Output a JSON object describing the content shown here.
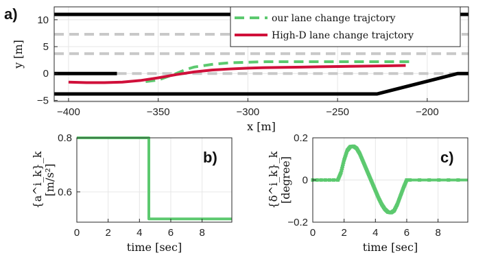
{
  "chart_data": [
    {
      "panel": "a)",
      "type": "line",
      "xlabel": "x [m]",
      "ylabel": "y [m]",
      "xlim": [
        -408,
        -177
      ],
      "ylim": [
        -5.2,
        12.4
      ],
      "xticks": [
        -400,
        -350,
        -300,
        -250,
        -200
      ],
      "yticks": [
        -5,
        0,
        5,
        10
      ],
      "legend_position": "top-right",
      "series": [
        {
          "name": "our lane change trajctory",
          "color": "#5cc96f",
          "style": "dashed",
          "x": [
            -357,
            -350,
            -345,
            -340,
            -335,
            -330,
            -320,
            -310,
            -300,
            -290,
            -280,
            -270,
            -260,
            -250,
            -240,
            -230,
            -220,
            -209
          ],
          "y": [
            -1.5,
            -1.2,
            -0.6,
            0.0,
            0.7,
            1.2,
            1.7,
            2.0,
            2.1,
            2.2,
            2.2,
            2.2,
            2.2,
            2.2,
            2.2,
            2.2,
            2.2,
            2.2
          ]
        },
        {
          "name": "High-D lane change trajctory",
          "color": "#d0103a",
          "style": "solid",
          "x": [
            -400,
            -390,
            -380,
            -370,
            -360,
            -350,
            -340,
            -330,
            -320,
            -310,
            -300,
            -290,
            -280,
            -270,
            -260,
            -250,
            -240,
            -230,
            -220,
            -212
          ],
          "y": [
            -1.6,
            -1.7,
            -1.7,
            -1.6,
            -1.3,
            -0.8,
            -0.2,
            0.3,
            0.65,
            0.85,
            1.0,
            1.1,
            1.15,
            1.2,
            1.25,
            1.3,
            1.35,
            1.4,
            1.45,
            1.5
          ]
        }
      ],
      "road_boundaries": [
        {
          "x": [
            -408,
            -177
          ],
          "y": [
            11,
            11
          ]
        },
        {
          "x": [
            -408,
            -373
          ],
          "y": [
            0,
            0
          ]
        },
        {
          "x": [
            -408,
            -228,
            -183,
            -177
          ],
          "y": [
            -3.8,
            -3.8,
            0,
            0
          ]
        }
      ],
      "lane_markings": [
        {
          "x": [
            -408,
            -177
          ],
          "y": [
            7.3,
            7.3
          ]
        },
        {
          "x": [
            -408,
            -177
          ],
          "y": [
            3.7,
            3.7
          ]
        },
        {
          "x": [
            -373,
            -177
          ],
          "y": [
            0,
            0
          ]
        }
      ]
    },
    {
      "panel": "b)",
      "type": "line",
      "xlabel": "time [sec]",
      "ylabel_top": "{a^i_k}_k",
      "ylabel_bottom": "[m/s²]",
      "xlim": [
        0,
        9.9
      ],
      "ylim": [
        0.488,
        0.8
      ],
      "xticks": [
        0,
        2,
        4,
        6,
        8
      ],
      "yticks": [
        0.6,
        0.8
      ],
      "series": [
        {
          "color": "#5cc96f",
          "x": [
            0,
            4.6,
            4.6,
            9.9
          ],
          "y": [
            0.8,
            0.8,
            0.5,
            0.5
          ]
        }
      ]
    },
    {
      "panel": "c)",
      "type": "line",
      "xlabel": "time [sec]",
      "ylabel_top": "{δ^i_k}_k",
      "ylabel_bottom": "[degree]",
      "xlim": [
        0,
        9.9
      ],
      "ylim": [
        -0.2,
        0.2
      ],
      "xticks": [
        0,
        2,
        4,
        6,
        8
      ],
      "yticks": [
        -0.2,
        0,
        0.2
      ],
      "series": [
        {
          "color": "#5cc96f",
          "x": [
            0,
            1.6,
            1.8,
            2.0,
            2.2,
            2.4,
            2.6,
            2.8,
            3.0,
            3.2,
            3.4,
            3.6,
            3.8,
            4.0,
            4.2,
            4.4,
            4.6,
            4.8,
            5.0,
            5.2,
            5.4,
            5.6,
            5.8,
            6.0,
            6.2,
            9.9
          ],
          "y": [
            0,
            0,
            0.035,
            0.095,
            0.14,
            0.158,
            0.16,
            0.15,
            0.125,
            0.09,
            0.055,
            0.02,
            -0.015,
            -0.05,
            -0.085,
            -0.115,
            -0.138,
            -0.152,
            -0.155,
            -0.145,
            -0.115,
            -0.075,
            -0.035,
            0.0,
            0,
            0
          ]
        }
      ]
    }
  ]
}
